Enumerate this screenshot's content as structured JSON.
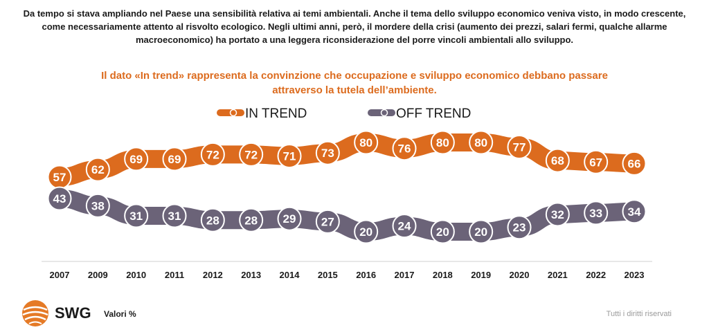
{
  "intro_text": "Da tempo si stava ampliando nel Paese una sensibilità relativa ai temi ambientali. Anche il tema dello sviluppo economico veniva visto, in modo crescente, come necessariamente attento al risvolto ecologico. Negli ultimi anni, però, il mordere della crisi (aumento dei prezzi, salari fermi, qualche allarme macroeconomico) ha portato a una leggera riconsiderazione del porre vincoli ambientali allo sviluppo.",
  "chart_data": {
    "type": "line",
    "title": "Il dato «In trend» rappresenta la convinzione che occupazione e sviluppo economico debbano passare attraverso la tutela dell’ambiente.",
    "categories": [
      "2007",
      "2009",
      "2010",
      "2011",
      "2012",
      "2013",
      "2014",
      "2015",
      "2016",
      "2017",
      "2018",
      "2019",
      "2020",
      "2021",
      "2022",
      "2023"
    ],
    "series": [
      {
        "name": "IN TREND",
        "color": "#dc6b1e",
        "values": [
          57,
          62,
          69,
          69,
          72,
          72,
          71,
          73,
          80,
          76,
          80,
          80,
          77,
          68,
          67,
          66
        ]
      },
      {
        "name": "OFF TREND",
        "color": "#6b6378",
        "values": [
          43,
          38,
          31,
          31,
          28,
          28,
          29,
          27,
          20,
          24,
          20,
          20,
          23,
          32,
          33,
          34
        ]
      }
    ],
    "legend_position": "top-center",
    "grid": false,
    "unit": "Valori %"
  },
  "footer": {
    "brand": "SWG",
    "unit_label": "Valori %",
    "rights": "Tutti i diritti riservati"
  },
  "colors": {
    "accent": "#dc6b1e",
    "secondary": "#6b6378"
  }
}
